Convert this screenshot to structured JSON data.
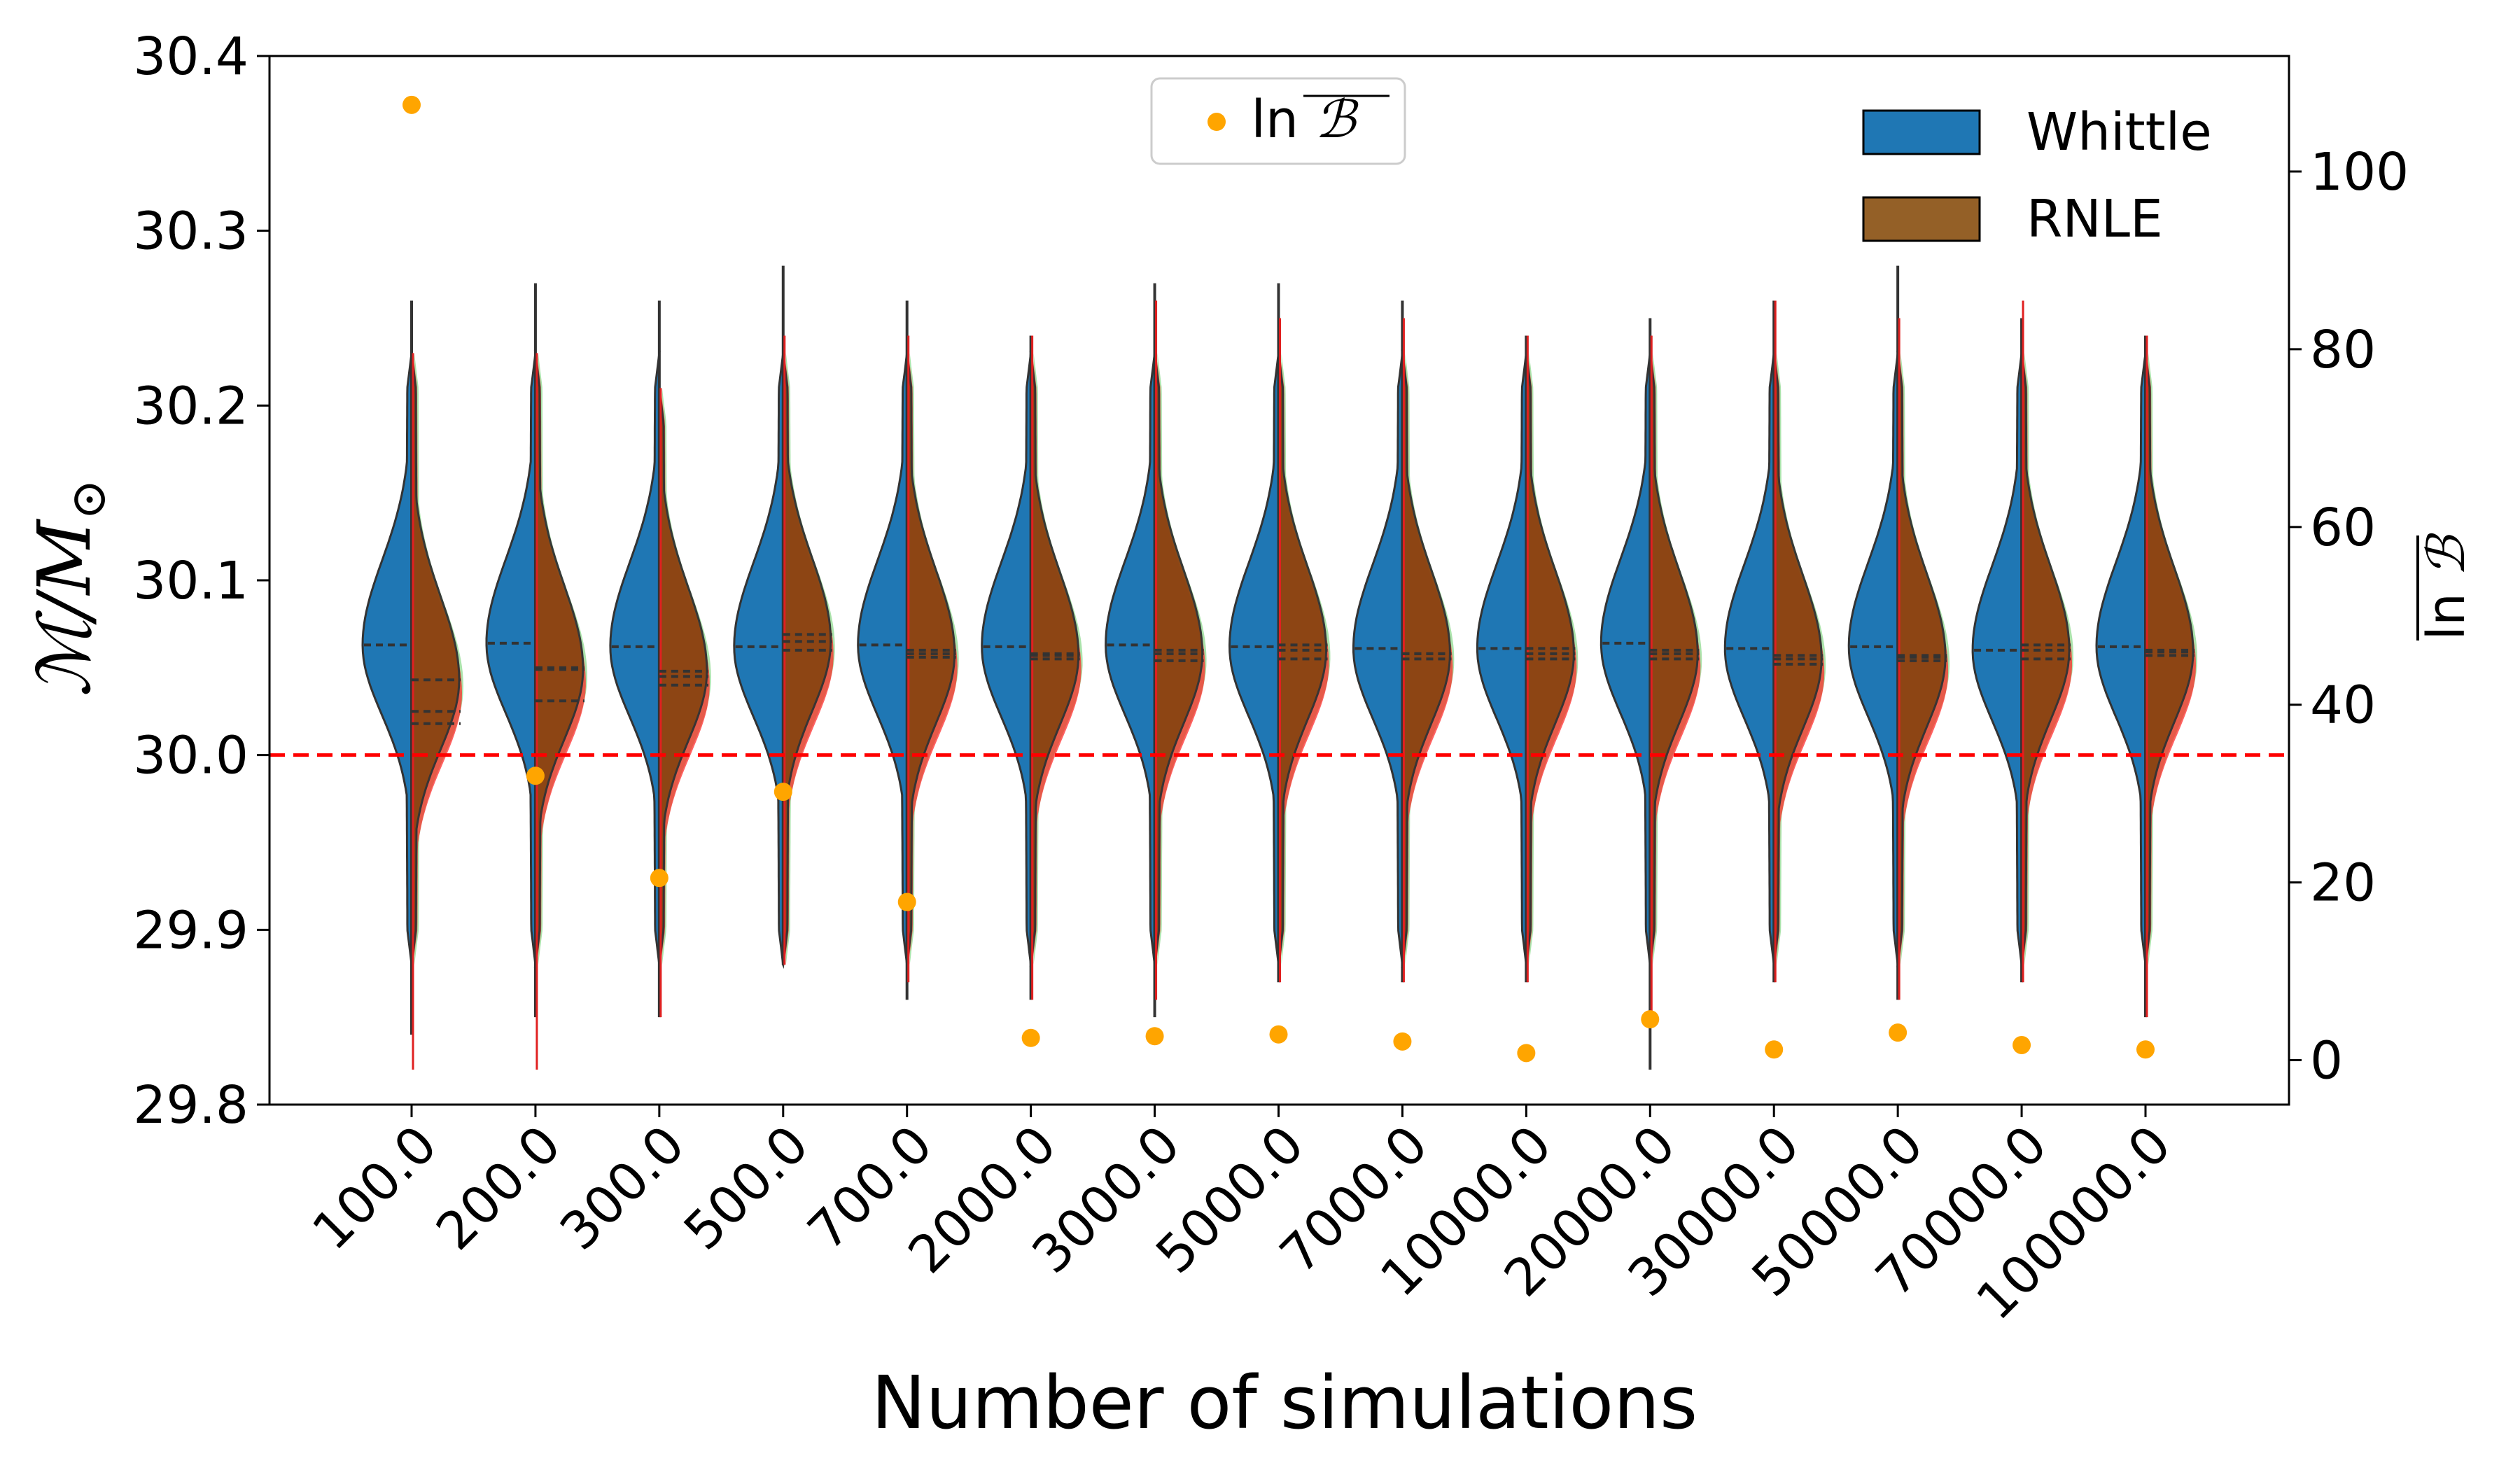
{
  "chart_data": {
    "type": "violin",
    "xlabel": "Number of simulations",
    "ylabel": "M/M⊙",
    "ylabel_parts": {
      "main": "ℳ/M",
      "sub": "⊙"
    },
    "y2label": "ln B",
    "y2label_parts": {
      "ln": "ln",
      "B": "ℬ"
    },
    "ylim": [
      29.8,
      30.4
    ],
    "y2lim": [
      -5,
      113
    ],
    "yticks": [
      "29.8",
      "29.9",
      "30.0",
      "30.1",
      "30.2",
      "30.3",
      "30.4"
    ],
    "y2ticks": [
      "0",
      "20",
      "40",
      "60",
      "80",
      "100"
    ],
    "reference_line": {
      "y": 30.0,
      "color": "#ff0000",
      "style": "dashed"
    },
    "categories": [
      "100.0",
      "200.0",
      "300.0",
      "500.0",
      "700.0",
      "2000.0",
      "3000.0",
      "5000.0",
      "7000.0",
      "10000.0",
      "20000.0",
      "30000.0",
      "50000.0",
      "70000.0",
      "100000.0"
    ],
    "series": [
      {
        "name": "Whittle",
        "color": "#1f77b4",
        "side": "left",
        "medians": [
          30.063,
          30.064,
          30.062,
          30.062,
          30.063,
          30.062,
          30.063,
          30.062,
          30.061,
          30.061,
          30.064,
          30.061,
          30.062,
          30.06,
          30.062
        ],
        "mins": [
          29.84,
          29.85,
          29.85,
          29.88,
          29.86,
          29.86,
          29.85,
          29.87,
          29.87,
          29.87,
          29.82,
          29.87,
          29.86,
          29.87,
          29.85
        ],
        "maxs": [
          30.26,
          30.27,
          30.26,
          30.28,
          30.26,
          30.24,
          30.27,
          30.27,
          30.26,
          30.24,
          30.25,
          30.26,
          30.28,
          30.25,
          30.24
        ]
      },
      {
        "name": "RNLE",
        "color": "#8b4513",
        "side": "right",
        "medians": [
          30.043,
          30.049,
          30.048,
          30.065,
          30.058,
          30.057,
          30.058,
          30.06,
          30.058,
          30.058,
          30.058,
          30.055,
          30.056,
          30.06,
          30.059
        ],
        "q1": [
          30.018,
          30.031,
          30.04,
          30.06,
          30.056,
          30.055,
          30.054,
          30.055,
          30.055,
          30.055,
          30.055,
          30.052,
          30.054,
          30.055,
          30.057
        ],
        "q3": [
          30.025,
          30.05,
          30.045,
          30.069,
          30.06,
          30.058,
          30.06,
          30.063,
          30.058,
          30.061,
          30.06,
          30.057,
          30.057,
          30.063,
          30.06
        ],
        "mins": [
          29.82,
          29.82,
          29.85,
          29.88,
          29.87,
          29.86,
          29.86,
          29.87,
          29.87,
          29.87,
          29.85,
          29.87,
          29.86,
          29.87,
          29.85
        ],
        "maxs": [
          30.23,
          30.23,
          30.21,
          30.24,
          30.24,
          30.24,
          30.26,
          30.25,
          30.25,
          30.24,
          30.24,
          30.26,
          30.25,
          30.26,
          30.24
        ]
      }
    ],
    "lnB": {
      "name": "ln B",
      "color": "#ffa500",
      "axis": "right",
      "values": [
        107.5,
        32,
        20.5,
        30.2,
        17.8,
        2.5,
        2.7,
        2.9,
        2.1,
        0.8,
        4.6,
        1.2,
        3.1,
        1.7,
        1.2
      ]
    },
    "legends": [
      {
        "position": "top-center",
        "entries": [
          "ln B"
        ]
      },
      {
        "position": "top-right",
        "entries": [
          "Whittle",
          "RNLE"
        ]
      }
    ]
  }
}
